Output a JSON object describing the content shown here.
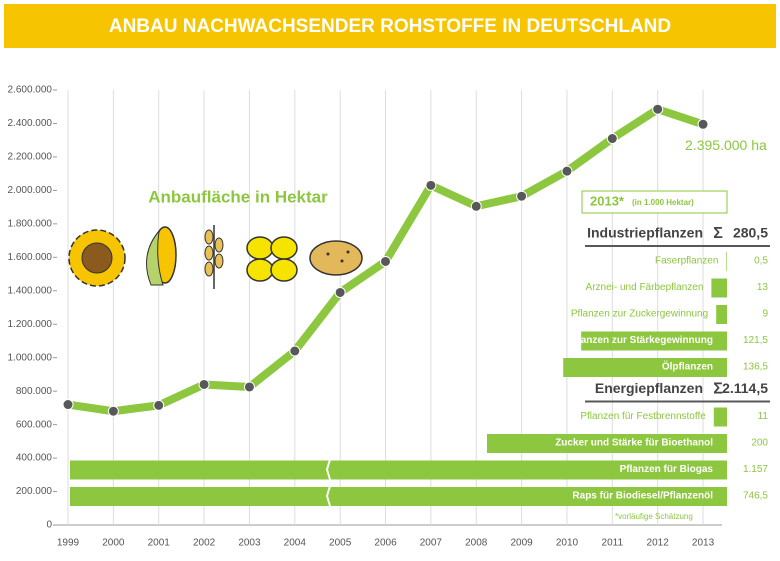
{
  "header": {
    "title": "ANBAU NACHWACHSENDER ROHSTOFFE IN DEUTSCHLAND"
  },
  "chart_data": [
    {
      "type": "line",
      "subtitle": "Anbaufläche in Hektar",
      "annotation": "2.395.000 ha",
      "categories": [
        "1999",
        "2000",
        "2001",
        "2002",
        "2003",
        "2004",
        "2005",
        "2006",
        "2007",
        "2008",
        "2009",
        "2010",
        "2011",
        "2012",
        "2013"
      ],
      "values": [
        720000,
        680000,
        715000,
        840000,
        825000,
        1040000,
        1390000,
        1575000,
        2030000,
        1905000,
        1965000,
        2115000,
        2310000,
        2485000,
        2395000
      ],
      "color": "#8dc63f",
      "point_color": "#58585a",
      "ylim": [
        0,
        2600000
      ],
      "yticks": [
        0,
        {
          "value": 200000,
          "label": "200.000"
        },
        {
          "value": 400000,
          "label": "400.000"
        },
        {
          "value": 600000,
          "label": "600.000"
        },
        {
          "value": 800000,
          "label": "800.000"
        },
        {
          "value": 1000000,
          "label": "1.000.000"
        },
        {
          "value": 1200000,
          "label": "1.200.000"
        },
        {
          "value": 1400000,
          "label": "1.400.000"
        },
        {
          "value": 1600000,
          "label": "1.600.000"
        },
        {
          "value": 1800000,
          "label": "1.800.000"
        },
        {
          "value": 2000000,
          "label": "2.000.000"
        },
        {
          "value": 2200000,
          "label": "2.200.000"
        },
        {
          "value": 2400000,
          "label": "2.400.000"
        },
        {
          "value": 2600000,
          "label": "2.600.000"
        }
      ],
      "grid": true
    },
    {
      "type": "bar",
      "orientation": "horizontal",
      "title": "2013*",
      "subtitle": "(in 1.000 Hektar)",
      "sum_symbol": "Σ",
      "color": "#8dc63f",
      "footnote": "*vorläufige Schätzung",
      "groups": [
        {
          "name": "Industriepflanzen",
          "total": {
            "value": 280.5,
            "label": "280,5"
          },
          "categories": [
            "Faserpflanzen",
            "Arznei- und Färbepflanzen",
            "Pflanzen zur Zuckergewinnung",
            "Pflanzen zur Stärkegewinnung",
            "Ölpflanzen"
          ],
          "values": [
            0.5,
            13,
            9,
            121.5,
            136.5
          ],
          "value_labels": [
            "0,5",
            "13",
            "9",
            "121,5",
            "136,5"
          ]
        },
        {
          "name": "Energiepflanzen",
          "total": {
            "value": 2114.5,
            "label": "2.114,5"
          },
          "categories": [
            "Pflanzen für Festbrennstoffe",
            "Zucker und Stärke für Bioethanol",
            "Pflanzen für Biogas",
            "Raps für Biodiesel/Pflanzenöl"
          ],
          "values": [
            11,
            200,
            1157,
            746.5
          ],
          "value_labels": [
            "11",
            "200",
            "1.157",
            "746,5"
          ]
        }
      ]
    }
  ]
}
